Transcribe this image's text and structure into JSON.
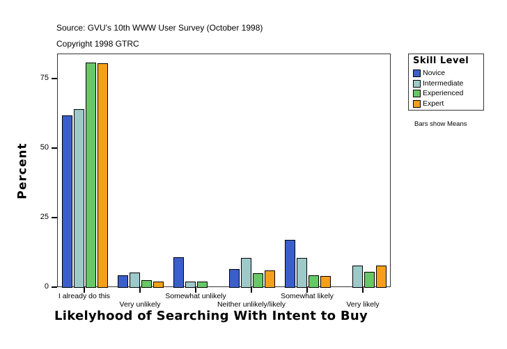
{
  "header": {
    "source": "Source: GVU's 10th WWW User Survey (October 1998)",
    "copyright": "Copyright 1998 GTRC"
  },
  "legend": {
    "title": "Skill Level",
    "items": [
      {
        "label": "Novice",
        "color": "#3a5fcd"
      },
      {
        "label": "Intermediate",
        "color": "#9ec9c9"
      },
      {
        "label": "Experienced",
        "color": "#66c866"
      },
      {
        "label": "Expert",
        "color": "#f5a01a"
      }
    ]
  },
  "note": "Bars show Means",
  "axes": {
    "ylabel": "Percent",
    "xlabel": "Likelyhood of Searching With Intent to Buy",
    "yticks": [
      "0",
      "25",
      "50",
      "75"
    ]
  },
  "chart_data": {
    "type": "bar",
    "title": "",
    "xlabel": "Likelyhood of Searching With Intent to Buy",
    "ylabel": "Percent",
    "ylim": [
      0,
      84
    ],
    "yticks": [
      0,
      25,
      50,
      75
    ],
    "grid": false,
    "legend_position": "right",
    "legend_title": "Skill Level",
    "categories": [
      "I already do this",
      "Very unlikely",
      "Somewhat unlikely",
      "Neither unlikely/likely",
      "Somewhat likely",
      "Very likely"
    ],
    "series": [
      {
        "name": "Novice",
        "color": "#3a5fcd",
        "values": [
          61.8,
          4.3,
          10.8,
          6.5,
          17.0,
          null
        ]
      },
      {
        "name": "Intermediate",
        "color": "#9ec9c9",
        "values": [
          64.0,
          5.3,
          2.0,
          10.5,
          10.5,
          7.8
        ]
      },
      {
        "name": "Experienced",
        "color": "#66c866",
        "values": [
          80.8,
          2.5,
          2.0,
          5.0,
          4.3,
          5.5
        ]
      },
      {
        "name": "Expert",
        "color": "#f5a01a",
        "values": [
          80.5,
          2.0,
          null,
          6.0,
          4.0,
          7.8
        ]
      }
    ],
    "annotations": [
      "Bars show Means"
    ]
  }
}
